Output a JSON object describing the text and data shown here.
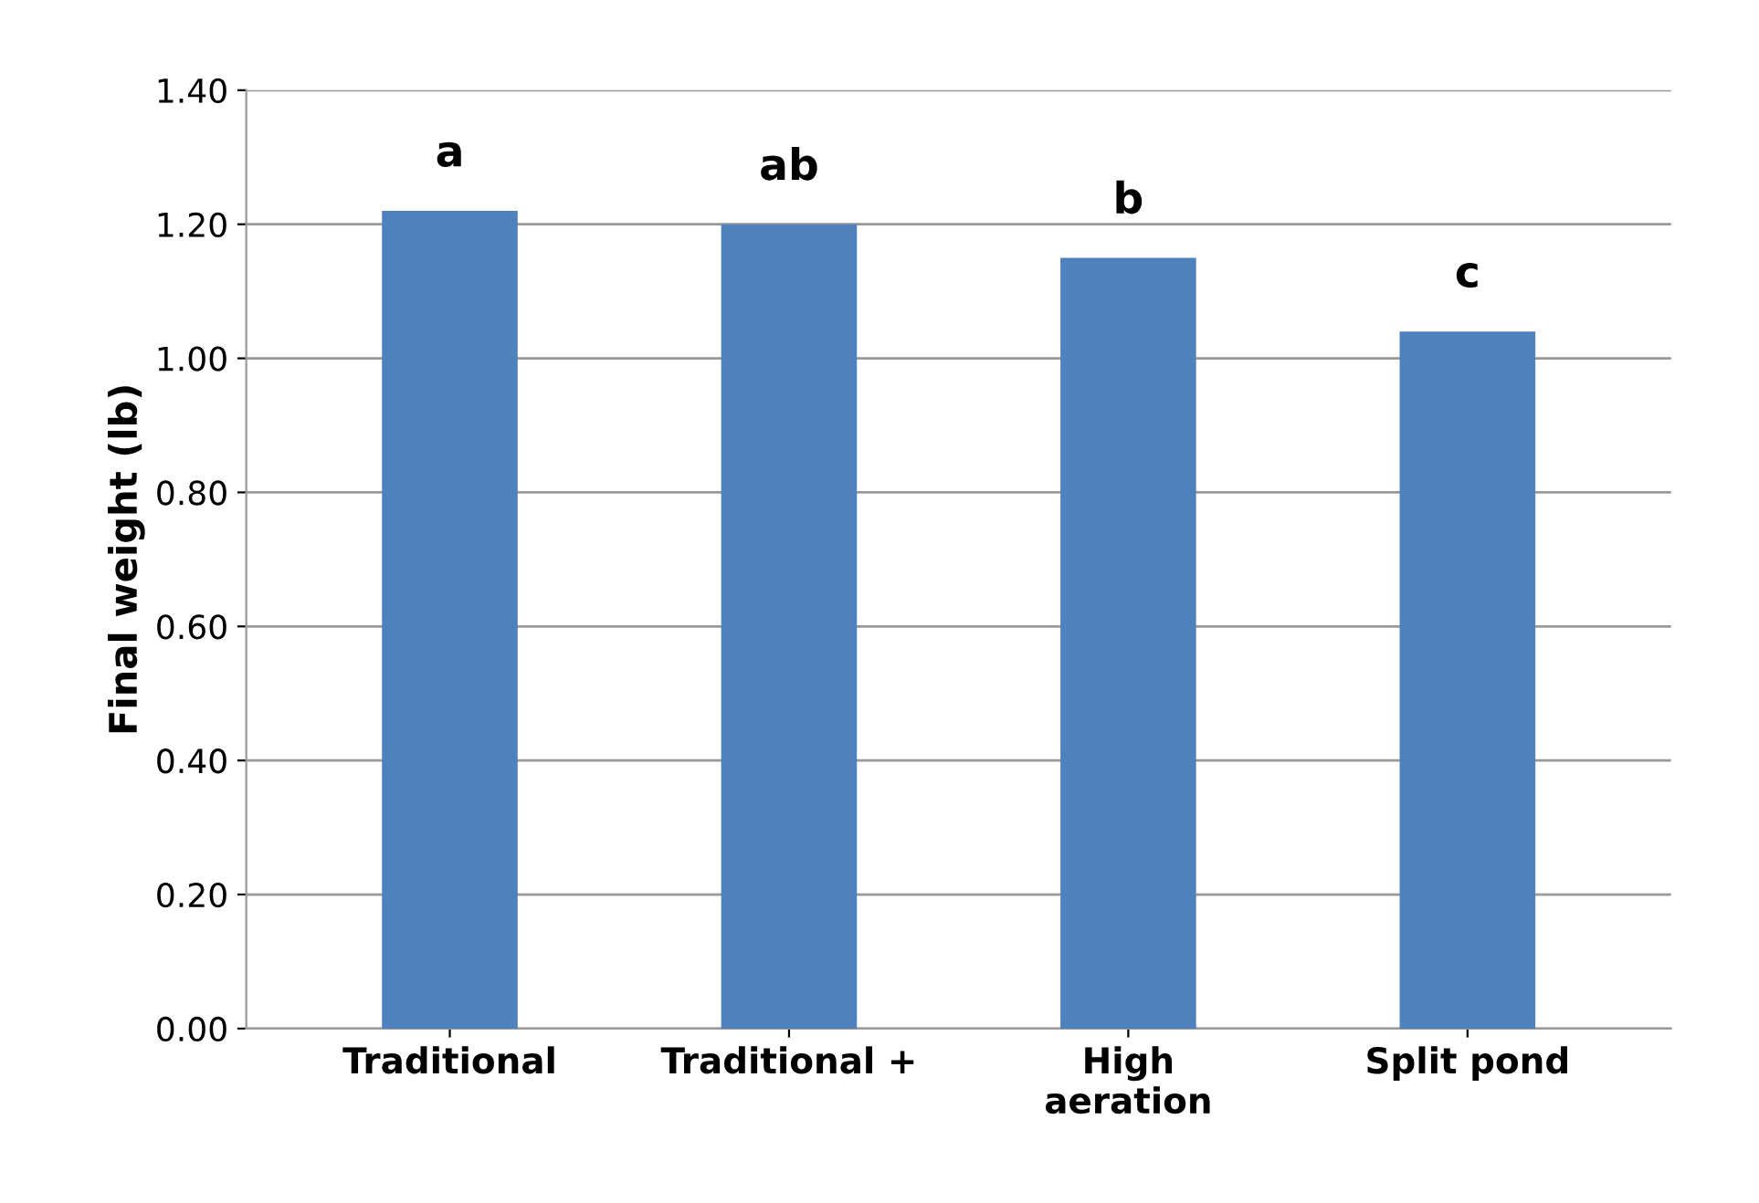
{
  "chart_data": {
    "type": "bar",
    "ylabel": "Final weight (lb)",
    "categories": [
      "Traditional",
      "Traditional +",
      "High\naeration",
      "Split pond"
    ],
    "values": [
      1.22,
      1.2,
      1.15,
      1.04
    ],
    "value_labels": [
      "a",
      "ab",
      "b",
      "c"
    ],
    "color": "#4f81bd",
    "ylim": [
      0,
      1.4
    ],
    "yticks": [
      {
        "value": 0,
        "label": "0.00"
      },
      {
        "value": 0.2,
        "label": "0.20"
      },
      {
        "value": 0.4,
        "label": "0.40"
      },
      {
        "value": 0.6,
        "label": "0.60"
      },
      {
        "value": 0.8,
        "label": "0.80"
      },
      {
        "value": 1.0,
        "label": "1.00"
      },
      {
        "value": 1.2,
        "label": "1.20"
      },
      {
        "value": 1.4,
        "label": "1.40"
      }
    ],
    "grid": "y"
  }
}
